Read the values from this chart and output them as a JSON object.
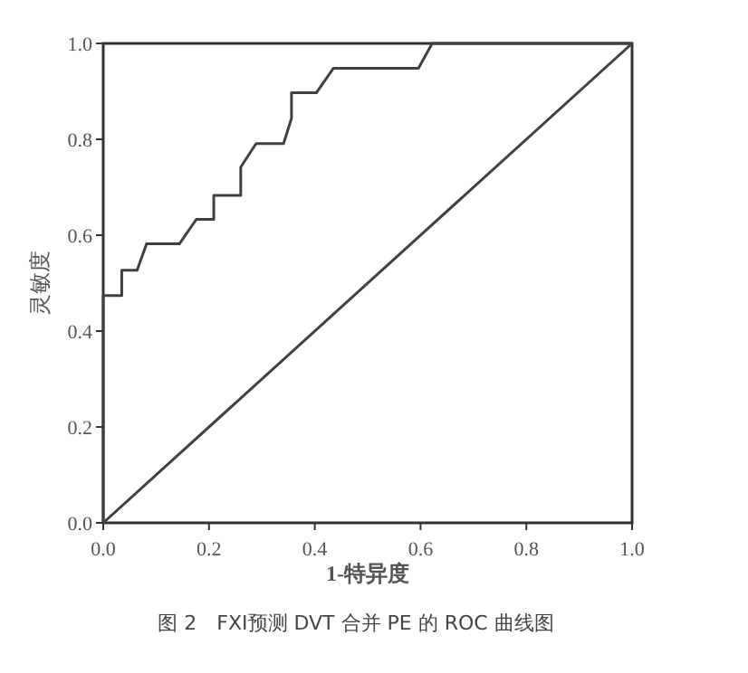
{
  "chart_data": {
    "type": "line",
    "xlabel": "1-特异度",
    "ylabel": "灵敏度",
    "annotations": [
      "图 2　FXI预测 DVT 合并 PE 的 ROC 曲线图"
    ],
    "xlim": [
      0,
      1
    ],
    "ylim": [
      0,
      1
    ],
    "xticks": [
      {
        "value": 0,
        "label": "0.0"
      },
      {
        "value": 0.2,
        "label": "0.2"
      },
      {
        "value": 0.4,
        "label": "0.4"
      },
      {
        "value": 0.6,
        "label": "0.6"
      },
      {
        "value": 0.8,
        "label": "0.8"
      },
      {
        "value": 1,
        "label": "1.0"
      }
    ],
    "yticks": [
      {
        "value": 0,
        "label": "0.0"
      },
      {
        "value": 0.2,
        "label": "0.2"
      },
      {
        "value": 0.4,
        "label": "0.4"
      },
      {
        "value": 0.6,
        "label": "0.6"
      },
      {
        "value": 0.8,
        "label": "0.8"
      },
      {
        "value": 1,
        "label": "1.0"
      }
    ],
    "grid": false,
    "marker": "none",
    "line_style": "solid",
    "series": [
      {
        "color": "#404040",
        "x": [
          0,
          0,
          0.035,
          0.035,
          0.064,
          0.082,
          0.144,
          0.176,
          0.209,
          0.209,
          0.26,
          0.26,
          0.289,
          0.341,
          0.356,
          0.356,
          0.403,
          0.435,
          0.596,
          0.622,
          1
        ],
        "values": [
          0,
          0.474,
          0.474,
          0.527,
          0.527,
          0.582,
          0.582,
          0.633,
          0.633,
          0.683,
          0.683,
          0.742,
          0.791,
          0.791,
          0.844,
          0.897,
          0.897,
          0.948,
          0.948,
          1,
          1
        ]
      },
      {
        "color": "#404040",
        "x": [
          0,
          1
        ],
        "values": [
          0,
          1
        ]
      }
    ]
  }
}
